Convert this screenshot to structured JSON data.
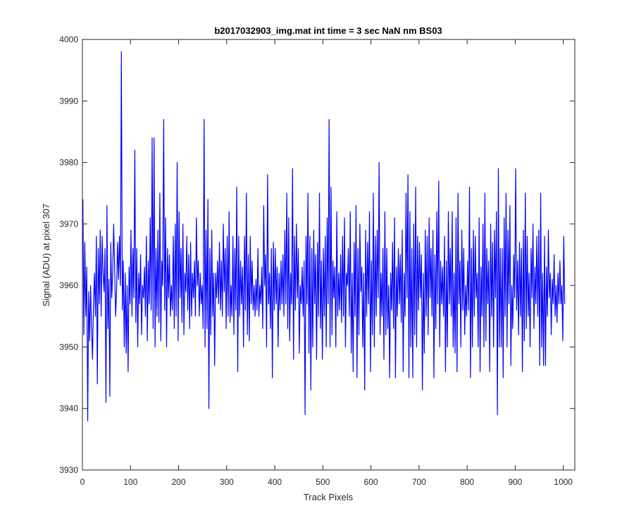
{
  "chart_data": {
    "type": "line",
    "title": "b2017032903_img.mat int time = 3 sec  NaN nm BS03",
    "xlabel": "Track Pixels",
    "ylabel": "Signal (ADU) at pixel 307",
    "xlim": [
      0,
      1024
    ],
    "ylim": [
      3930,
      4000
    ],
    "xticks": [
      0,
      100,
      200,
      300,
      400,
      500,
      600,
      700,
      800,
      900,
      1000
    ],
    "yticks": [
      3930,
      3940,
      3950,
      3960,
      3970,
      3980,
      3990,
      4000
    ],
    "grid": false,
    "legend": "none",
    "series_color": "#0000ff",
    "x_start": 1,
    "x_step": 2,
    "values": [
      3974,
      3952,
      3967,
      3955,
      3963,
      3938,
      3959,
      3951,
      3960,
      3953,
      3948,
      3957,
      3962,
      3955,
      3968,
      3944,
      3966,
      3957,
      3969,
      3955,
      3968,
      3962,
      3959,
      3966,
      3941,
      3973,
      3953,
      3961,
      3942,
      3967,
      3958,
      3962,
      3970,
      3963,
      3955,
      3959,
      3967,
      3961,
      3968,
      3960,
      3998,
      3956,
      3964,
      3950,
      3962,
      3949,
      3960,
      3946,
      3963,
      3957,
      3969,
      3955,
      3966,
      3958,
      3982,
      3954,
      3966,
      3950,
      3962,
      3957,
      3965,
      3952,
      3960,
      3958,
      3963,
      3955,
      3968,
      3951,
      3964,
      3957,
      3971,
      3956,
      3984,
      3953,
      3984,
      3950,
      3966,
      3955,
      3969,
      3954,
      3975,
      3951,
      3964,
      3960,
      3987,
      3956,
      3971,
      3950,
      3966,
      3958,
      3965,
      3955,
      3960,
      3956,
      3968,
      3953,
      3970,
      3955,
      3980,
      3951,
      3972,
      3958,
      3966,
      3954,
      3970,
      3952,
      3962,
      3959,
      3968,
      3956,
      3965,
      3953,
      3967,
      3955,
      3962,
      3958,
      3964,
      3955,
      3971,
      3960,
      3964,
      3955,
      3962,
      3957,
      3960,
      3953,
      3987,
      3950,
      3969,
      3953,
      3974,
      3940,
      3966,
      3952,
      3969,
      3955,
      3962,
      3947,
      3962,
      3958,
      3964,
      3957,
      3967,
      3956,
      3964,
      3955,
      3970,
      3959,
      3966,
      3953,
      3968,
      3955,
      3972,
      3954,
      3960,
      3955,
      3968,
      3952,
      3966,
      3956,
      3976,
      3946,
      3968,
      3955,
      3964,
      3957,
      3963,
      3950,
      3968,
      3956,
      3975,
      3952,
      3965,
      3951,
      3968,
      3957,
      3964,
      3956,
      3960,
      3955,
      3961,
      3956,
      3966,
      3955,
      3960,
      3957,
      3963,
      3953,
      3973,
      3960,
      3965,
      3950,
      3978,
      3957,
      3962,
      3953,
      3966,
      3945,
      3967,
      3956,
      3966,
      3957,
      3963,
      3950,
      3962,
      3956,
      3964,
      3957,
      3965,
      3955,
      3969,
      3957,
      3975,
      3953,
      3971,
      3951,
      3962,
      3957,
      3979,
      3948,
      3968,
      3956,
      3970,
      3958,
      3966,
      3949,
      3960,
      3957,
      3963,
      3955,
      3964,
      3939,
      3968,
      3957,
      3975,
      3949,
      3968,
      3943,
      3966,
      3950,
      3969,
      3957,
      3965,
      3948,
      3967,
      3955,
      3975,
      3953,
      3964,
      3948,
      3966,
      3955,
      3968,
      3950,
      3971,
      3957,
      3987,
      3950,
      3976,
      3952,
      3964,
      3958,
      3963,
      3950,
      3972,
      3955,
      3962,
      3956,
      3965,
      3954,
      3968,
      3955,
      3971,
      3950,
      3962,
      3960,
      3966,
      3955,
      3972,
      3949,
      3962,
      3946,
      3967,
      3955,
      3973,
      3945,
      3966,
      3952,
      3970,
      3959,
      3963,
      3950,
      3962,
      3943,
      3969,
      3955,
      3967,
      3957,
      3972,
      3946,
      3964,
      3952,
      3975,
      3950,
      3968,
      3955,
      3969,
      3958,
      3980,
      3952,
      3962,
      3955,
      3966,
      3948,
      3972,
      3952,
      3966,
      3953,
      3960,
      3945,
      3962,
      3956,
      3967,
      3953,
      3971,
      3945,
      3963,
      3955,
      3966,
      3957,
      3965,
      3954,
      3969,
      3946,
      3962,
      3955,
      3975,
      3958,
      3978,
      3945,
      3972,
      3950,
      3966,
      3945,
      3970,
      3952,
      3976,
      3950,
      3968,
      3956,
      3967,
      3958,
      3965,
      3943,
      3962,
      3949,
      3969,
      3955,
      3968,
      3952,
      3971,
      3958,
      3966,
      3955,
      3969,
      3945,
      3965,
      3953,
      3972,
      3957,
      3977,
      3950,
      3964,
      3957,
      3963,
      3955,
      3968,
      3946,
      3964,
      3950,
      3972,
      3957,
      3966,
      3955,
      3972,
      3950,
      3962,
      3949,
      3971,
      3946,
      3975,
      3957,
      3964,
      3950,
      3969,
      3956,
      3966,
      3952,
      3960,
      3955,
      3964,
      3956,
      3976,
      3945,
      3966,
      3950,
      3969,
      3955,
      3968,
      3958,
      3962,
      3950,
      3971,
      3946,
      3963,
      3955,
      3970,
      3950,
      3975,
      3951,
      3966,
      3957,
      3964,
      3946,
      3970,
      3955,
      3967,
      3950,
      3969,
      3958,
      3972,
      3939,
      3979,
      3950,
      3966,
      3950,
      3966,
      3945,
      3971,
      3955,
      3975,
      3950,
      3969,
      3957,
      3973,
      3947,
      3960,
      3953,
      3965,
      3958,
      3979,
      3956,
      3964,
      3952,
      3967,
      3955,
      3966,
      3946,
      3969,
      3951,
      3975,
      3953,
      3968,
      3955,
      3962,
      3950,
      3966,
      3958,
      3970,
      3953,
      3963,
      3957,
      3968,
      3955,
      3969,
      3947,
      3975,
      3950,
      3962,
      3947,
      3968,
      3947,
      3963,
      3955,
      3969,
      3958,
      3962,
      3952,
      3961,
      3957,
      3965,
      3955,
      3960,
      3954,
      3962,
      3957,
      3964,
      3957,
      3960,
      3951,
      3968,
      3957
    ]
  }
}
